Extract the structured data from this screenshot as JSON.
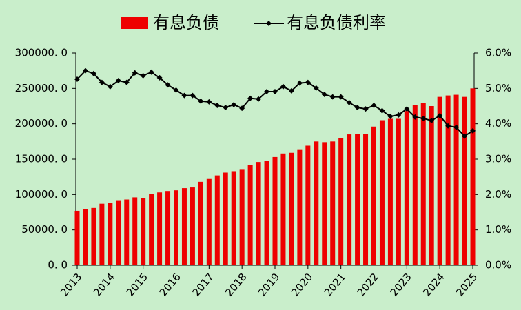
{
  "chart_data": {
    "type": "bar_line",
    "categories": [
      "2013",
      null,
      null,
      null,
      "2014",
      null,
      null,
      null,
      "2015",
      null,
      null,
      null,
      "2016",
      null,
      null,
      null,
      "2017",
      null,
      null,
      null,
      "2018",
      null,
      null,
      null,
      "2019",
      null,
      null,
      null,
      "2020",
      null,
      null,
      null,
      "2021",
      null,
      null,
      null,
      "2022",
      null,
      null,
      null,
      "2023",
      null,
      null,
      null,
      "2024",
      null,
      null,
      null,
      "2025"
    ],
    "series": [
      {
        "name": "有息负债",
        "type": "bar",
        "color": "#ee0000",
        "values": [
          77000,
          79000,
          81000,
          87000,
          88000,
          91000,
          93000,
          96000,
          95000,
          101000,
          103000,
          105000,
          106000,
          109000,
          110000,
          118000,
          122000,
          127000,
          131000,
          133000,
          135000,
          142000,
          146000,
          148000,
          153000,
          158000,
          159000,
          163000,
          169000,
          175000,
          174000,
          175000,
          180000,
          185000,
          186000,
          186000,
          196000,
          205000,
          207000,
          207000,
          218000,
          226000,
          229000,
          225000,
          238000,
          240000,
          241000,
          238000,
          250000
        ]
      },
      {
        "name": "有息负债利率",
        "type": "line",
        "axis": "y2",
        "color": "#000000",
        "values": [
          5.26,
          5.5,
          5.42,
          5.17,
          5.05,
          5.22,
          5.17,
          5.44,
          5.36,
          5.46,
          5.3,
          5.1,
          4.95,
          4.8,
          4.8,
          4.64,
          4.62,
          4.52,
          4.46,
          4.54,
          4.44,
          4.72,
          4.7,
          4.91,
          4.91,
          5.05,
          4.93,
          5.15,
          5.17,
          5.01,
          4.83,
          4.76,
          4.76,
          4.6,
          4.46,
          4.42,
          4.52,
          4.37,
          4.21,
          4.25,
          4.42,
          4.19,
          4.15,
          4.09,
          4.23,
          3.94,
          3.9,
          3.65,
          3.8
        ]
      }
    ],
    "ylim": [
      0,
      300000
    ],
    "yticks": [
      {
        "value": 0,
        "label": "0. 0"
      },
      {
        "value": 50000,
        "label": "50000. 0"
      },
      {
        "value": 100000,
        "label": "100000. 0"
      },
      {
        "value": 150000,
        "label": "150000. 0"
      },
      {
        "value": 200000,
        "label": "200000. 0"
      },
      {
        "value": 250000,
        "label": "250000. 0"
      },
      {
        "value": 300000,
        "label": "300000. 0"
      }
    ],
    "y2lim": [
      0,
      6
    ],
    "y2ticks": [
      {
        "value": 0,
        "label": "0.0%"
      },
      {
        "value": 1,
        "label": "1.0%"
      },
      {
        "value": 2,
        "label": "2.0%"
      },
      {
        "value": 3,
        "label": "3.0%"
      },
      {
        "value": 4,
        "label": "4.0%"
      },
      {
        "value": 5,
        "label": "5.0%"
      },
      {
        "value": 6,
        "label": "6.0%"
      }
    ],
    "legend": "top",
    "grid": false
  }
}
